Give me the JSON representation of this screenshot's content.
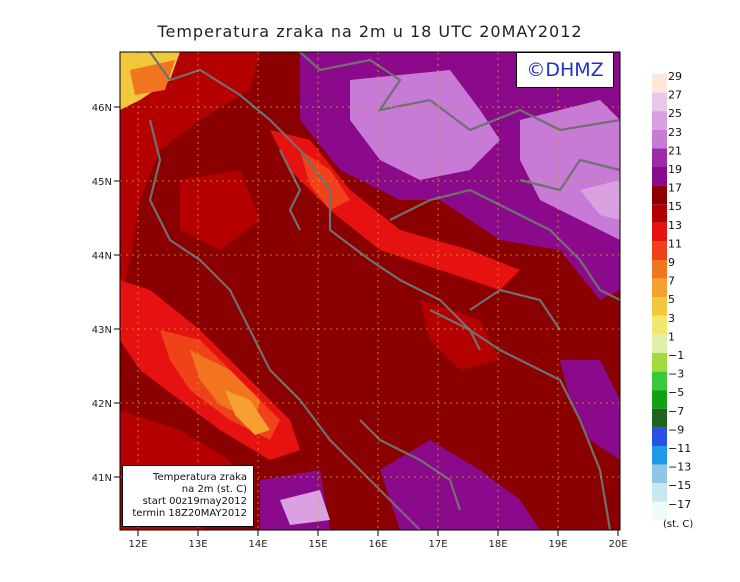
{
  "title": "Temperatura zraka na 2m u 18 UTC 20MAY2012",
  "logo": "©DHMZ",
  "info_box": {
    "line1": "Temperatura zraka",
    "line2": "na 2m (st. C)",
    "line3": "start 00z19may2012",
    "line4": "termin 18Z20MAY2012"
  },
  "axes": {
    "lat_labels": [
      "46N",
      "45N",
      "44N",
      "43N",
      "42N",
      "41N"
    ],
    "lon_labels": [
      "12E",
      "13E",
      "14E",
      "15E",
      "16E",
      "17E",
      "18E",
      "19E",
      "20E"
    ]
  },
  "legend": {
    "unit": "(st. C)",
    "labels": [
      "29",
      "27",
      "25",
      "23",
      "21",
      "19",
      "17",
      "15",
      "13",
      "11",
      "9",
      "7",
      "5",
      "3",
      "1",
      "−1",
      "−3",
      "−5",
      "−7",
      "−9",
      "−11",
      "−13",
      "−15",
      "−17"
    ],
    "colors": [
      "#fde7d6",
      "#e8c8e8",
      "#d9a1e0",
      "#c77ad6",
      "#9a2ba8",
      "#8b0a8b",
      "#8a0000",
      "#b40000",
      "#e61212",
      "#f0421a",
      "#f2741e",
      "#f5a030",
      "#f0c83a",
      "#f2e870",
      "#dff0a8",
      "#a0dc3c",
      "#3cc83c",
      "#14a014",
      "#1e641e",
      "#2850e6",
      "#1e9be6",
      "#8cc8e6",
      "#c8e8f0",
      "#f0fafa"
    ]
  },
  "colors": {
    "land_base": "#8a0000",
    "coast": "#707070"
  }
}
